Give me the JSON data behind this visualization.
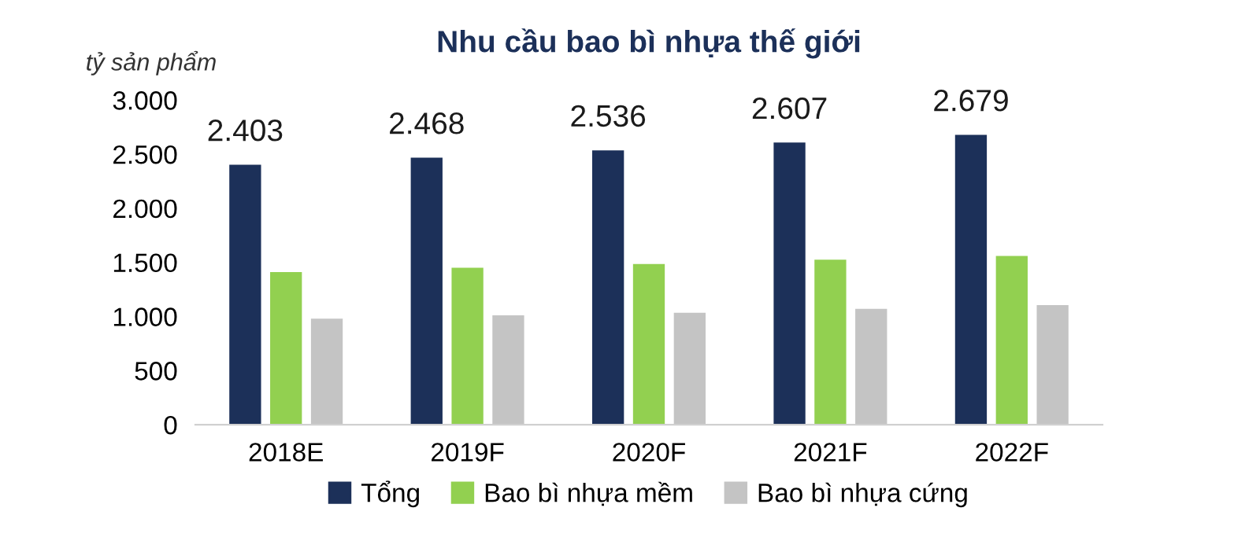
{
  "chart_data": {
    "type": "bar",
    "title": "Nhu cầu bao bì nhựa thế giới",
    "ylabel": "tỷ sản phẩm",
    "categories": [
      "2018E",
      "2019F",
      "2020F",
      "2021F",
      "2022F"
    ],
    "series": [
      {
        "name": "Tổng",
        "color": "#1c3059",
        "values": [
          2403,
          2468,
          2536,
          2607,
          2679
        ],
        "value_labels": [
          "2.403",
          "2.468",
          "2.536",
          "2.607",
          "2.679"
        ]
      },
      {
        "name": "Bao bì nhựa mềm",
        "color": "#92d050",
        "values": [
          1410,
          1450,
          1485,
          1525,
          1560
        ]
      },
      {
        "name": "Bao bì nhựa cứng",
        "color": "#c4c4c4",
        "values": [
          980,
          1010,
          1035,
          1070,
          1105
        ]
      }
    ],
    "ylim": [
      0,
      3000
    ],
    "yticks": [
      {
        "value": 0,
        "label": "0"
      },
      {
        "value": 500,
        "label": "500"
      },
      {
        "value": 1000,
        "label": "1.000"
      },
      {
        "value": 1500,
        "label": "1.500"
      },
      {
        "value": 2000,
        "label": "2.000"
      },
      {
        "value": 2500,
        "label": "2.500"
      },
      {
        "value": 3000,
        "label": "3.000"
      }
    ],
    "grid": false,
    "legend": "bottom"
  }
}
